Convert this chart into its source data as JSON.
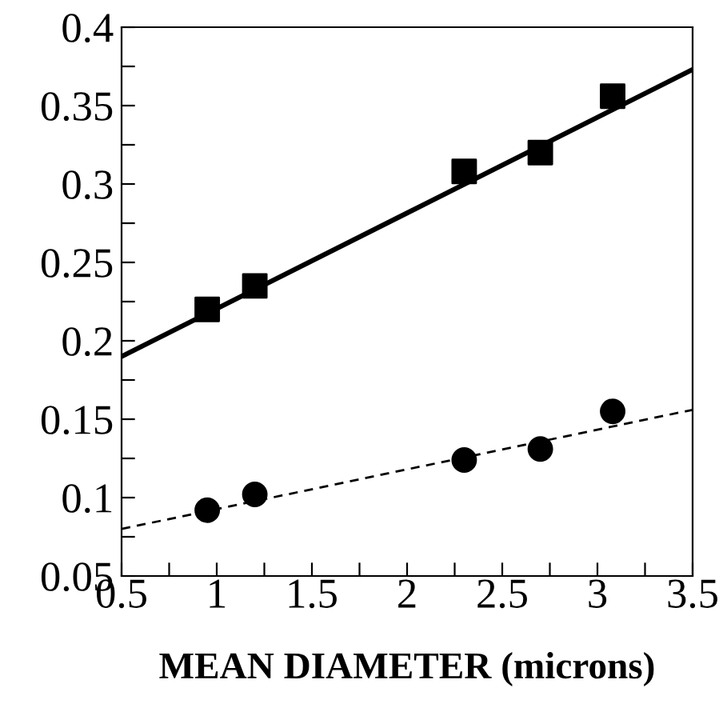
{
  "chart_data": {
    "type": "scatter",
    "xlabel": "MEAN DIAMETER (microns)",
    "xlim": [
      0.5,
      3.5
    ],
    "ylim": [
      0.05,
      0.4
    ],
    "xticks": [
      0.5,
      {
        "value": 0.75,
        "label": null
      },
      1,
      {
        "value": 1.25,
        "label": null
      },
      1.5,
      {
        "value": 1.75,
        "label": null
      },
      2,
      {
        "value": 2.25,
        "label": null
      },
      2.5,
      {
        "value": 2.75,
        "label": null
      },
      3,
      {
        "value": 3.25,
        "label": null
      },
      3.5
    ],
    "yticks": [
      0.05,
      {
        "value": 0.075,
        "label": null
      },
      0.1,
      {
        "value": 0.125,
        "label": null
      },
      0.15,
      {
        "value": 0.175,
        "label": null
      },
      0.2,
      {
        "value": 0.225,
        "label": null
      },
      0.25,
      {
        "value": 0.275,
        "label": null
      },
      0.3,
      {
        "value": 0.325,
        "label": null
      },
      0.35,
      {
        "value": 0.375,
        "label": null
      },
      0.4
    ],
    "grid": false,
    "series": [
      {
        "marker": "square",
        "color": "#000000",
        "x": [
          0.95,
          1.2,
          2.3,
          2.7,
          3.08
        ],
        "values": [
          0.22,
          0.235,
          0.308,
          0.32,
          0.356
        ]
      },
      {
        "type": "line",
        "marker": "none",
        "line_style": "solid",
        "color": "#000000",
        "x": [
          0.5,
          3.5
        ],
        "values": [
          0.19,
          0.373
        ]
      },
      {
        "marker": "circle",
        "color": "#000000",
        "x": [
          0.95,
          1.2,
          2.3,
          2.7,
          3.08
        ],
        "values": [
          0.092,
          0.102,
          0.124,
          0.131,
          0.155
        ]
      },
      {
        "type": "line",
        "marker": "none",
        "line_style": "dashed",
        "color": "#000000",
        "x": [
          0.5,
          3.5
        ],
        "values": [
          0.08,
          0.156
        ]
      }
    ]
  }
}
